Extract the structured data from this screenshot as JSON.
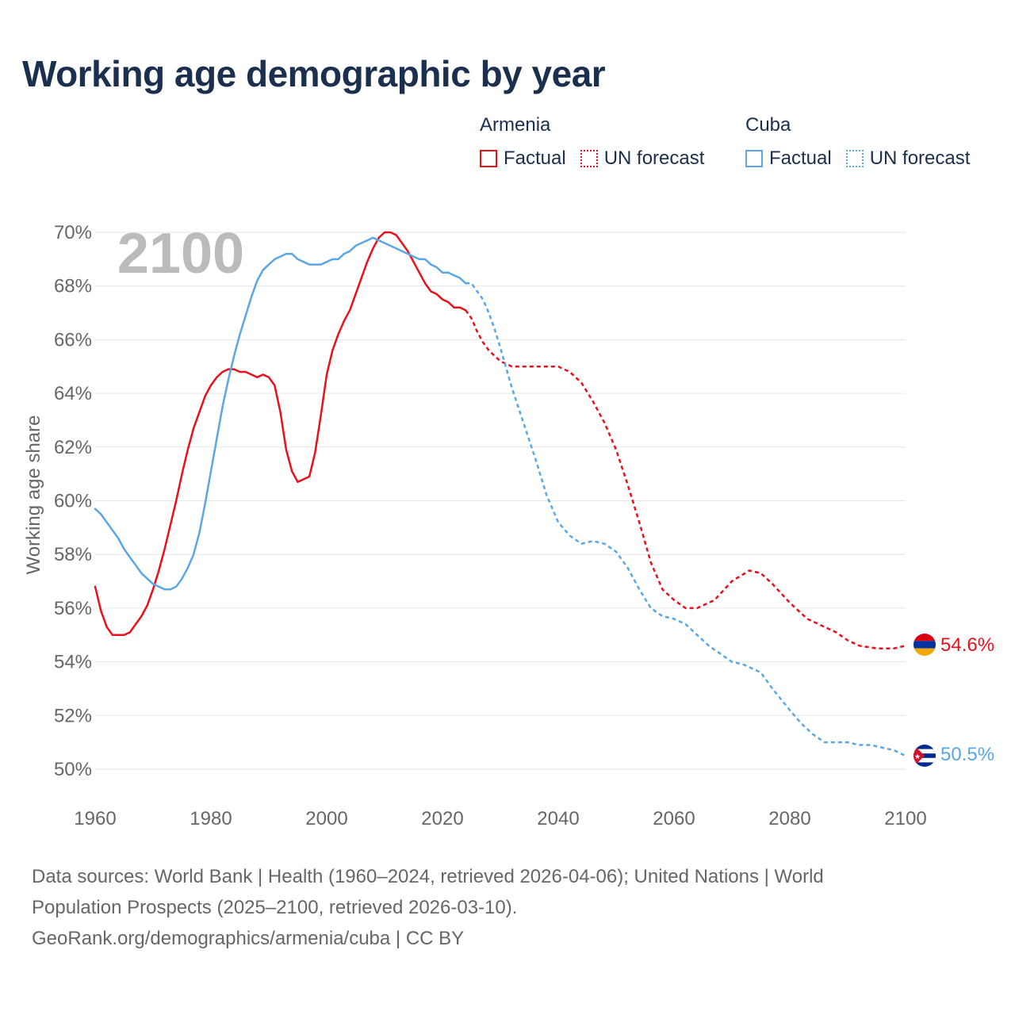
{
  "title": "Working age demographic by year",
  "legend": {
    "groups": [
      {
        "name": "Armenia",
        "color": "#e8101a",
        "factual_label": "Factual",
        "forecast_label": "UN forecast"
      },
      {
        "name": "Cuba",
        "color": "#5ba7e5",
        "factual_label": "Factual",
        "forecast_label": "UN forecast"
      }
    ]
  },
  "chart_data": {
    "type": "line",
    "year_watermark": "2100",
    "ylabel": "Working age share",
    "xlabel": "",
    "xlim": [
      1960,
      2100
    ],
    "ylim": [
      50,
      70
    ],
    "x_ticks": [
      "1960",
      "1980",
      "2000",
      "2020",
      "2040",
      "2060",
      "2080",
      "2100"
    ],
    "y_ticks": [
      "70%",
      "68%",
      "66%",
      "64%",
      "62%",
      "60%",
      "58%",
      "56%",
      "54%",
      "52%",
      "50%"
    ],
    "forecast_start_year": 2024,
    "series": [
      {
        "name": "Armenia",
        "color": "#e8101a",
        "end_label": "54.6%",
        "flag": "armenia-flag-icon",
        "points": [
          [
            1960,
            56.8
          ],
          [
            1961,
            55.9
          ],
          [
            1962,
            55.3
          ],
          [
            1963,
            55.0
          ],
          [
            1964,
            55.0
          ],
          [
            1965,
            55.0
          ],
          [
            1966,
            55.1
          ],
          [
            1967,
            55.4
          ],
          [
            1968,
            55.7
          ],
          [
            1969,
            56.1
          ],
          [
            1970,
            56.7
          ],
          [
            1971,
            57.4
          ],
          [
            1972,
            58.2
          ],
          [
            1973,
            59.1
          ],
          [
            1974,
            60.0
          ],
          [
            1975,
            61.0
          ],
          [
            1976,
            61.9
          ],
          [
            1977,
            62.7
          ],
          [
            1978,
            63.3
          ],
          [
            1979,
            63.9
          ],
          [
            1980,
            64.3
          ],
          [
            1981,
            64.6
          ],
          [
            1982,
            64.8
          ],
          [
            1983,
            64.9
          ],
          [
            1984,
            64.9
          ],
          [
            1985,
            64.8
          ],
          [
            1986,
            64.8
          ],
          [
            1987,
            64.7
          ],
          [
            1988,
            64.6
          ],
          [
            1989,
            64.7
          ],
          [
            1990,
            64.6
          ],
          [
            1991,
            64.3
          ],
          [
            1992,
            63.3
          ],
          [
            1993,
            61.9
          ],
          [
            1994,
            61.1
          ],
          [
            1995,
            60.7
          ],
          [
            1996,
            60.8
          ],
          [
            1997,
            60.9
          ],
          [
            1998,
            61.8
          ],
          [
            1999,
            63.2
          ],
          [
            2000,
            64.7
          ],
          [
            2001,
            65.6
          ],
          [
            2002,
            66.2
          ],
          [
            2003,
            66.7
          ],
          [
            2004,
            67.1
          ],
          [
            2005,
            67.7
          ],
          [
            2006,
            68.3
          ],
          [
            2007,
            68.9
          ],
          [
            2008,
            69.4
          ],
          [
            2009,
            69.8
          ],
          [
            2010,
            70.0
          ],
          [
            2011,
            70.0
          ],
          [
            2012,
            69.9
          ],
          [
            2013,
            69.6
          ],
          [
            2014,
            69.3
          ],
          [
            2015,
            68.9
          ],
          [
            2016,
            68.5
          ],
          [
            2017,
            68.1
          ],
          [
            2018,
            67.8
          ],
          [
            2019,
            67.7
          ],
          [
            2020,
            67.5
          ],
          [
            2021,
            67.4
          ],
          [
            2022,
            67.2
          ],
          [
            2023,
            67.2
          ],
          [
            2024,
            67.1
          ],
          [
            2025,
            66.8
          ],
          [
            2026,
            66.3
          ],
          [
            2027,
            65.9
          ],
          [
            2028,
            65.6
          ],
          [
            2029,
            65.4
          ],
          [
            2030,
            65.2
          ],
          [
            2031,
            65.1
          ],
          [
            2032,
            65.0
          ],
          [
            2035,
            65.0
          ],
          [
            2038,
            65.0
          ],
          [
            2040,
            65.0
          ],
          [
            2042,
            64.8
          ],
          [
            2044,
            64.4
          ],
          [
            2046,
            63.7
          ],
          [
            2048,
            62.9
          ],
          [
            2050,
            61.9
          ],
          [
            2052,
            60.6
          ],
          [
            2054,
            59.2
          ],
          [
            2056,
            57.7
          ],
          [
            2058,
            56.7
          ],
          [
            2060,
            56.3
          ],
          [
            2062,
            56.0
          ],
          [
            2064,
            56.0
          ],
          [
            2067,
            56.3
          ],
          [
            2070,
            57.0
          ],
          [
            2073,
            57.4
          ],
          [
            2075,
            57.3
          ],
          [
            2077,
            56.9
          ],
          [
            2080,
            56.2
          ],
          [
            2083,
            55.6
          ],
          [
            2086,
            55.3
          ],
          [
            2088,
            55.1
          ],
          [
            2090,
            54.8
          ],
          [
            2092,
            54.6
          ],
          [
            2095,
            54.5
          ],
          [
            2098,
            54.5
          ],
          [
            2100,
            54.6
          ]
        ]
      },
      {
        "name": "Cuba",
        "color": "#5ba7e5",
        "end_label": "50.5%",
        "flag": "cuba-flag-icon",
        "points": [
          [
            1960,
            59.7
          ],
          [
            1961,
            59.5
          ],
          [
            1962,
            59.2
          ],
          [
            1963,
            58.9
          ],
          [
            1964,
            58.6
          ],
          [
            1965,
            58.2
          ],
          [
            1966,
            57.9
          ],
          [
            1967,
            57.6
          ],
          [
            1968,
            57.3
          ],
          [
            1969,
            57.1
          ],
          [
            1970,
            56.9
          ],
          [
            1971,
            56.8
          ],
          [
            1972,
            56.7
          ],
          [
            1973,
            56.7
          ],
          [
            1974,
            56.8
          ],
          [
            1975,
            57.1
          ],
          [
            1976,
            57.5
          ],
          [
            1977,
            58.0
          ],
          [
            1978,
            58.8
          ],
          [
            1979,
            59.9
          ],
          [
            1980,
            61.1
          ],
          [
            1981,
            62.3
          ],
          [
            1982,
            63.5
          ],
          [
            1983,
            64.5
          ],
          [
            1984,
            65.4
          ],
          [
            1985,
            66.2
          ],
          [
            1986,
            66.9
          ],
          [
            1987,
            67.6
          ],
          [
            1988,
            68.2
          ],
          [
            1989,
            68.6
          ],
          [
            1990,
            68.8
          ],
          [
            1991,
            69.0
          ],
          [
            1992,
            69.1
          ],
          [
            1993,
            69.2
          ],
          [
            1994,
            69.2
          ],
          [
            1995,
            69.0
          ],
          [
            1996,
            68.9
          ],
          [
            1997,
            68.8
          ],
          [
            1998,
            68.8
          ],
          [
            1999,
            68.8
          ],
          [
            2000,
            68.9
          ],
          [
            2001,
            69.0
          ],
          [
            2002,
            69.0
          ],
          [
            2003,
            69.2
          ],
          [
            2004,
            69.3
          ],
          [
            2005,
            69.5
          ],
          [
            2006,
            69.6
          ],
          [
            2007,
            69.7
          ],
          [
            2008,
            69.8
          ],
          [
            2009,
            69.7
          ],
          [
            2010,
            69.6
          ],
          [
            2011,
            69.5
          ],
          [
            2012,
            69.4
          ],
          [
            2013,
            69.3
          ],
          [
            2014,
            69.2
          ],
          [
            2015,
            69.1
          ],
          [
            2016,
            69.0
          ],
          [
            2017,
            69.0
          ],
          [
            2018,
            68.8
          ],
          [
            2019,
            68.7
          ],
          [
            2020,
            68.5
          ],
          [
            2021,
            68.5
          ],
          [
            2022,
            68.4
          ],
          [
            2023,
            68.3
          ],
          [
            2024,
            68.1
          ],
          [
            2025,
            68.1
          ],
          [
            2026,
            67.8
          ],
          [
            2027,
            67.5
          ],
          [
            2028,
            67.0
          ],
          [
            2029,
            66.4
          ],
          [
            2030,
            65.7
          ],
          [
            2032,
            64.2
          ],
          [
            2034,
            62.9
          ],
          [
            2036,
            61.6
          ],
          [
            2038,
            60.2
          ],
          [
            2040,
            59.2
          ],
          [
            2042,
            58.7
          ],
          [
            2044,
            58.4
          ],
          [
            2046,
            58.5
          ],
          [
            2048,
            58.4
          ],
          [
            2050,
            58.1
          ],
          [
            2052,
            57.5
          ],
          [
            2054,
            56.7
          ],
          [
            2056,
            56.0
          ],
          [
            2058,
            55.7
          ],
          [
            2060,
            55.6
          ],
          [
            2062,
            55.4
          ],
          [
            2064,
            55.0
          ],
          [
            2066,
            54.6
          ],
          [
            2068,
            54.3
          ],
          [
            2070,
            54.0
          ],
          [
            2072,
            53.9
          ],
          [
            2075,
            53.6
          ],
          [
            2077,
            53.0
          ],
          [
            2080,
            52.2
          ],
          [
            2082,
            51.7
          ],
          [
            2084,
            51.3
          ],
          [
            2086,
            51.0
          ],
          [
            2088,
            51.0
          ],
          [
            2090,
            51.0
          ],
          [
            2092,
            50.9
          ],
          [
            2094,
            50.9
          ],
          [
            2096,
            50.8
          ],
          [
            2098,
            50.7
          ],
          [
            2100,
            50.5
          ]
        ]
      }
    ]
  },
  "footer": {
    "line1": "Data sources: World Bank | Health (1960–2024, retrieved 2026-04-06); United Nations | World",
    "line2": "Population Prospects (2025–2100, retrieved 2026-03-10).",
    "line3": "GeoRank.org/demographics/armenia/cuba | CC BY"
  }
}
